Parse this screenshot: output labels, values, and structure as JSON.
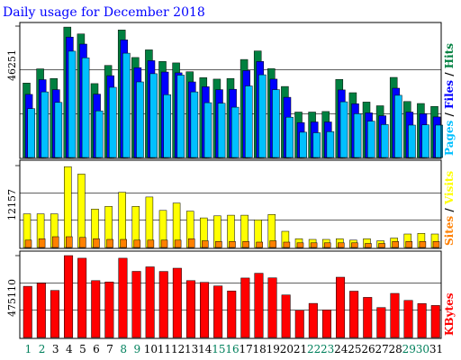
{
  "chart_data": {
    "type": "bar",
    "title": "Daily usage for December 2018",
    "categories": [
      "1",
      "2",
      "3",
      "4",
      "5",
      "6",
      "7",
      "8",
      "9",
      "10",
      "11",
      "12",
      "13",
      "14",
      "15",
      "16",
      "17",
      "18",
      "19",
      "20",
      "21",
      "22",
      "23",
      "24",
      "25",
      "26",
      "27",
      "28",
      "29",
      "30",
      "31"
    ],
    "weekend_days": [
      "1",
      "2",
      "8",
      "9",
      "15",
      "16",
      "22",
      "23",
      "29",
      "30"
    ],
    "colors": {
      "title": "#0000ff",
      "hits": "#008040",
      "files": "#0000ff",
      "pages": "#00c0ff",
      "visits": "#ffff00",
      "sites": "#ff8000",
      "kbytes": "#ff0000",
      "weekday_label": "#000000",
      "weekend_label": "#00805c",
      "frame": "#000000",
      "grid": "#000000"
    },
    "panels": [
      {
        "id": "requests",
        "ymax_label": "46251",
        "ymax": 46251,
        "legend": [
          "Hits",
          "Files",
          "Pages"
        ],
        "legend_separator": " / ",
        "series": [
          {
            "name": "Hits",
            "color": "#008040",
            "values": [
              26200,
              31200,
              27800,
              45900,
              43500,
              26000,
              32400,
              44900,
              35200,
              37900,
              33800,
              33300,
              30200,
              28100,
              27600,
              27800,
              34500,
              37500,
              31300,
              25000,
              16000,
              16000,
              16200,
              27500,
              22800,
              19500,
              18200,
              28200,
              19700,
              19000,
              18000
            ]
          },
          {
            "name": "Files",
            "color": "#0000ff",
            "values": [
              22200,
              27400,
              23900,
              42400,
              39900,
              22300,
              28800,
              41400,
              31600,
              34100,
              30100,
              29800,
              26600,
              24900,
              23900,
              24000,
              30600,
              33800,
              27600,
              21200,
              12300,
              12500,
              12500,
              23800,
              18900,
              15700,
              14700,
              24400,
              16000,
              15400,
              14300
            ]
          },
          {
            "name": "Pages",
            "color": "#00c0ff",
            "values": [
              17200,
              23100,
              19400,
              37400,
              35100,
              16400,
              24700,
              36700,
              26600,
              29500,
              22100,
              29000,
              23100,
              19300,
              19100,
              17700,
              25200,
              29100,
              23900,
              14200,
              8900,
              8700,
              9100,
              19600,
              15400,
              12800,
              11600,
              21900,
              11400,
              11500,
              11400
            ]
          }
        ]
      },
      {
        "id": "visitors",
        "ymax_label": "12157",
        "ymax": 12157,
        "legend": [
          "Visits",
          "Sites"
        ],
        "legend_separator": " / ",
        "series": [
          {
            "name": "Visits",
            "color": "#ffff00",
            "values": [
              5000,
              5000,
              5000,
              12000,
              10900,
              5700,
              6100,
              8200,
              6100,
              7500,
              5500,
              6600,
              5400,
              4400,
              4700,
              4800,
              4800,
              4100,
              4900,
              2400,
              1300,
              1200,
              1200,
              1300,
              1100,
              1300,
              1000,
              1400,
              2000,
              2100,
              2000
            ]
          },
          {
            "name": "Sites",
            "color": "#ff8000",
            "values": [
              1100,
              1300,
              1600,
              1600,
              1500,
              1300,
              1200,
              1200,
              1100,
              1100,
              1100,
              1100,
              1300,
              1000,
              900,
              900,
              900,
              800,
              1000,
              800,
              700,
              700,
              700,
              700,
              700,
              600,
              600,
              900,
              900,
              900,
              900
            ]
          }
        ]
      },
      {
        "id": "traffic",
        "ymax_label": "475110",
        "ymax": 475110,
        "legend": [
          "KBytes"
        ],
        "legend_separator": "",
        "series": [
          {
            "name": "KBytes",
            "color": "#ff0000",
            "values": [
              297000,
              316000,
              273000,
              475000,
              460000,
              330000,
              322000,
              460000,
              384000,
              410000,
              383000,
              402000,
              330000,
              320000,
              299000,
              270000,
              345000,
              373000,
              346000,
              247000,
              158000,
              198000,
              160000,
              350000,
              269000,
              233000,
              174000,
              256000,
              215000,
              197000,
              186000
            ]
          }
        ]
      }
    ]
  }
}
